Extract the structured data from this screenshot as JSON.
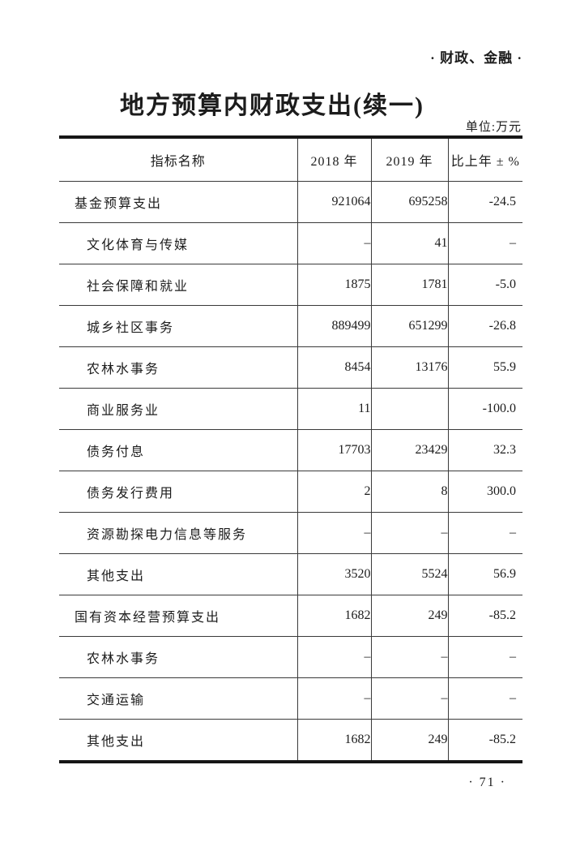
{
  "page": {
    "section_header": "· 财政、金融 ·",
    "title": "地方预算内财政支出(续一)",
    "unit_label": "单位:万元",
    "page_number": "· 71 ·",
    "ink_color": "#1c1c1c",
    "rule_color": "#3a3a3a"
  },
  "table": {
    "columns": [
      "指标名称",
      "2018 年",
      "2019 年",
      "比上年 ± %"
    ],
    "rows": [
      {
        "indicator": "基金预算支出",
        "y2018": "921064",
        "y2019": "695258",
        "change": "-24.5",
        "indent": 0
      },
      {
        "indicator": "文化体育与传媒",
        "y2018": "–",
        "y2019": "41",
        "change": "–",
        "indent": 1
      },
      {
        "indicator": "社会保障和就业",
        "y2018": "1875",
        "y2019": "1781",
        "change": "-5.0",
        "indent": 1
      },
      {
        "indicator": "城乡社区事务",
        "y2018": "889499",
        "y2019": "651299",
        "change": "-26.8",
        "indent": 1
      },
      {
        "indicator": "农林水事务",
        "y2018": "8454",
        "y2019": "13176",
        "change": "55.9",
        "indent": 1
      },
      {
        "indicator": "商业服务业",
        "y2018": "11",
        "y2019": "",
        "change": "-100.0",
        "indent": 1
      },
      {
        "indicator": "债务付息",
        "y2018": "17703",
        "y2019": "23429",
        "change": "32.3",
        "indent": 1
      },
      {
        "indicator": "债务发行费用",
        "y2018": "2",
        "y2019": "8",
        "change": "300.0",
        "indent": 1
      },
      {
        "indicator": "资源勘探电力信息等服务",
        "y2018": "–",
        "y2019": "–",
        "change": "–",
        "indent": 1
      },
      {
        "indicator": "其他支出",
        "y2018": "3520",
        "y2019": "5524",
        "change": "56.9",
        "indent": 1
      },
      {
        "indicator": "国有资本经营预算支出",
        "y2018": "1682",
        "y2019": "249",
        "change": "-85.2",
        "indent": 0
      },
      {
        "indicator": "农林水事务",
        "y2018": "–",
        "y2019": "–",
        "change": "–",
        "indent": 1
      },
      {
        "indicator": "交通运输",
        "y2018": "–",
        "y2019": "–",
        "change": "–",
        "indent": 1
      },
      {
        "indicator": "其他支出",
        "y2018": "1682",
        "y2019": "249",
        "change": "-85.2",
        "indent": 1
      }
    ]
  }
}
